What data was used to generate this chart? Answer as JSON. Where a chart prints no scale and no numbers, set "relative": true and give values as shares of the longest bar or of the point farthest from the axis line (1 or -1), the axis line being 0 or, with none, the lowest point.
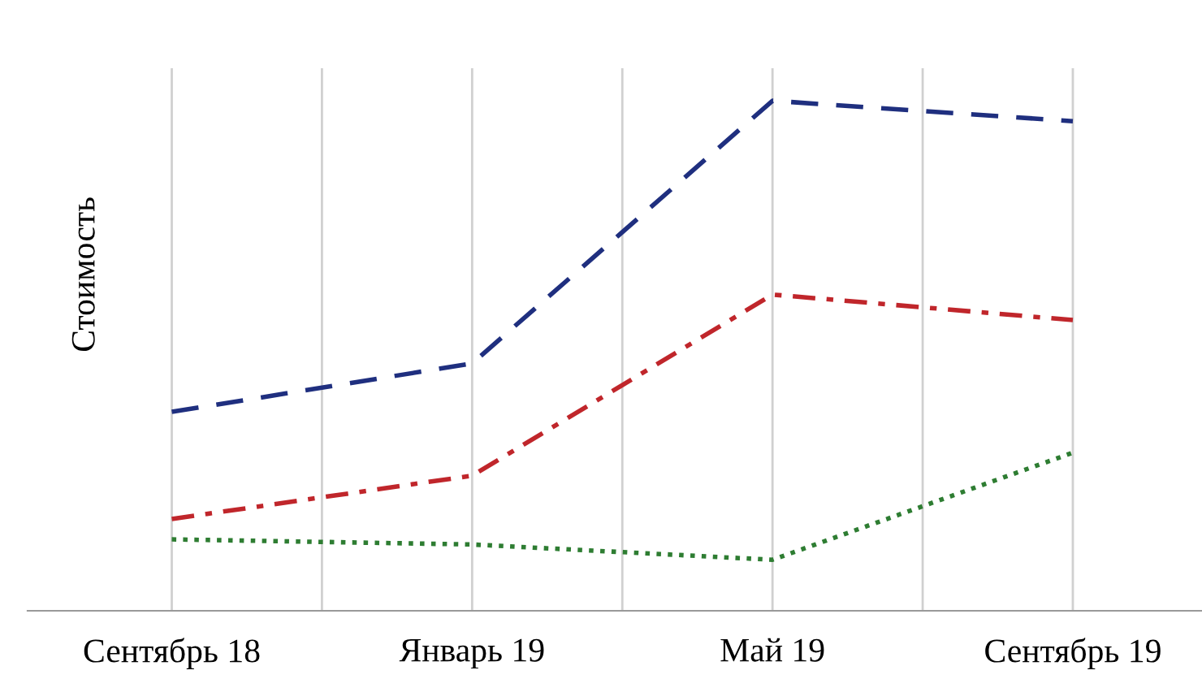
{
  "chart_data": {
    "type": "line",
    "relative": true,
    "ylabel": "Стоимость",
    "grid": "x",
    "categories": [
      "Сентябрь 18",
      "Январь 19",
      "Май 19",
      "Сентябрь 19"
    ],
    "series": [
      {
        "color": "#1f2f7f",
        "line_style": "dashed",
        "values": [
          0.39,
          0.485,
          1,
          0.96
        ]
      },
      {
        "color": "#c0262b",
        "line_style": "dashdot",
        "values": [
          0.18,
          0.265,
          0.62,
          0.57
        ]
      },
      {
        "color": "#2e7d32",
        "line_style": "dotted",
        "values": [
          0.14,
          0.13,
          0.1,
          0.31
        ]
      }
    ]
  }
}
